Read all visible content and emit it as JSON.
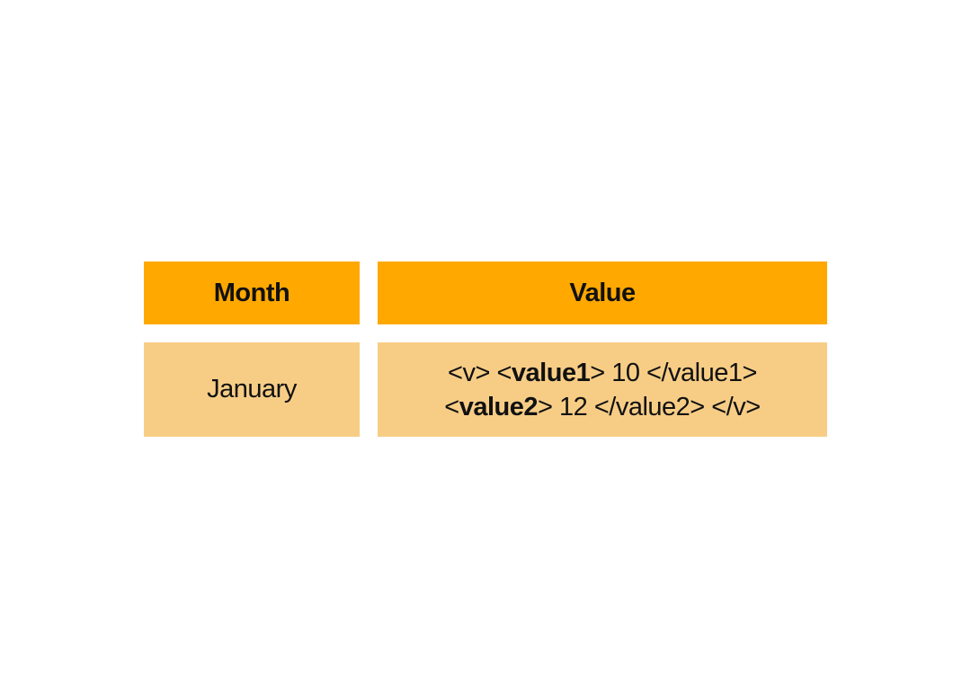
{
  "table": {
    "headers": {
      "month": "Month",
      "value": "Value"
    },
    "rows": [
      {
        "month": "January",
        "value": {
          "line1": {
            "open_v": "<v>",
            "open_value1_lt": "<",
            "open_value1_name": "value1",
            "open_value1_gt": ">",
            "value1_content": "10",
            "close_value1": "</value1>"
          },
          "line2": {
            "open_value2_lt": "<",
            "open_value2_name": "value2",
            "open_value2_gt": ">",
            "value2_content": "12",
            "close_value2": "</value2>",
            "close_v": "</v>"
          }
        }
      }
    ]
  },
  "colors": {
    "header_bg": "#FFA800",
    "cell_bg": "#F7CD86"
  }
}
